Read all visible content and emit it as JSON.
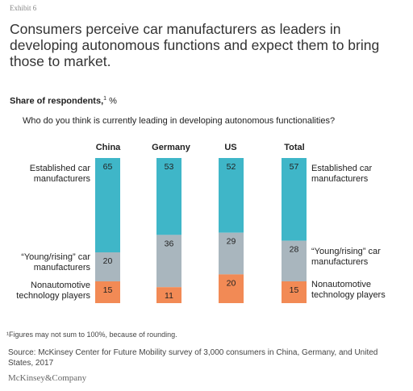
{
  "exhibit": "Exhibit 6",
  "title": "Consumers perceive car manufacturers as leaders in developing autonomous functions and expect them to bring those to market.",
  "share_label": "Share of respondents,",
  "share_sup": "1",
  "share_unit": "%",
  "question": "Who do you think is currently leading in developing autonomous functionalities?",
  "labels": {
    "established": "Established car manufacturers",
    "young": "“Young/rising” car manufacturers",
    "nonauto": "Nonautomotive technology players"
  },
  "footnote": "¹Figures may not sum to 100%, because of rounding.",
  "source": "Source: McKinsey Center for Future Mobility survey of 3,000 consumers in China, Germany, and United States, 2017",
  "brand": "McKinsey&Company",
  "chart_data": {
    "type": "bar",
    "stacked": true,
    "unit": "%",
    "categories": [
      "China",
      "Germany",
      "US",
      "Total"
    ],
    "series": [
      {
        "name": "Established car manufacturers",
        "values": [
          65,
          53,
          52,
          57
        ],
        "color": "#3fb6c8"
      },
      {
        "name": "“Young/rising” car manufacturers",
        "values": [
          20,
          36,
          29,
          28
        ],
        "color": "#a9b6be"
      },
      {
        "name": "Nonautomotive technology players",
        "values": [
          15,
          11,
          20,
          15
        ],
        "color": "#f28a55"
      }
    ]
  }
}
